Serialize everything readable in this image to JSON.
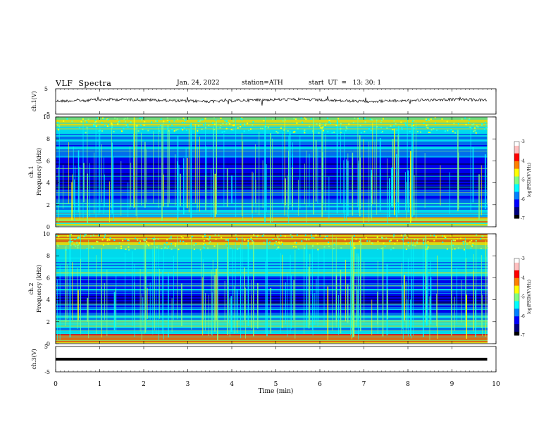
{
  "header": {
    "title": "VLF  Spectra",
    "date": "Jan. 24, 2022",
    "station": "station=ATH",
    "start_ut": "start  UT  =   13: 30: 1"
  },
  "colors": {
    "colormap": [
      "#000000",
      "#00007f",
      "#0000ff",
      "#0080ff",
      "#00ffff",
      "#80ff80",
      "#ffff00",
      "#ff8000",
      "#ff0000",
      "#ffc0c0",
      "#ffffff"
    ]
  },
  "chart_data": [
    {
      "type": "line",
      "ylabel": "ch.1(V)",
      "xlim": [
        0,
        10
      ],
      "ylim": [
        -5,
        5
      ],
      "y_ticks": [
        "5",
        "-5"
      ],
      "series": [
        {
          "x": [
            0,
            9.8
          ],
          "values": [
            0,
            0
          ]
        }
      ]
    },
    {
      "type": "heatmap",
      "ylabel": "ch.1\nFrequency (kHz)",
      "xlim": [
        0,
        10
      ],
      "ylim": [
        0,
        10
      ],
      "y_ticks": [
        "0",
        "2",
        "4",
        "6",
        "8",
        "10"
      ],
      "colorbar": {
        "label": "log(PSD)(V²/Hz)",
        "ticks": [
          "-3",
          "-4",
          "-5",
          "-6",
          "-7"
        ],
        "range": [
          -7,
          -3
        ]
      }
    },
    {
      "type": "heatmap",
      "ylabel": "ch.2\nFrequency (kHz)",
      "xlim": [
        0,
        10
      ],
      "ylim": [
        0,
        10
      ],
      "y_ticks": [
        "0",
        "2",
        "4",
        "6",
        "8",
        "10"
      ],
      "colorbar": {
        "label": "log(PSD)(V²/Hz)",
        "ticks": [
          "-3",
          "-4",
          "-5",
          "-6",
          "-7"
        ],
        "range": [
          -7,
          -3
        ]
      }
    },
    {
      "type": "line",
      "ylabel": "ch.3(V)",
      "xlim": [
        0,
        10
      ],
      "ylim": [
        -5,
        5
      ],
      "y_ticks": [
        "5",
        "-5"
      ],
      "xlabel": "Time  (min)",
      "x_ticks": [
        "0",
        "1",
        "2",
        "3",
        "4",
        "5",
        "6",
        "7",
        "8",
        "9",
        "10"
      ],
      "series": [
        {
          "x": [
            0,
            9.8
          ],
          "values": [
            0,
            0
          ]
        }
      ]
    }
  ]
}
